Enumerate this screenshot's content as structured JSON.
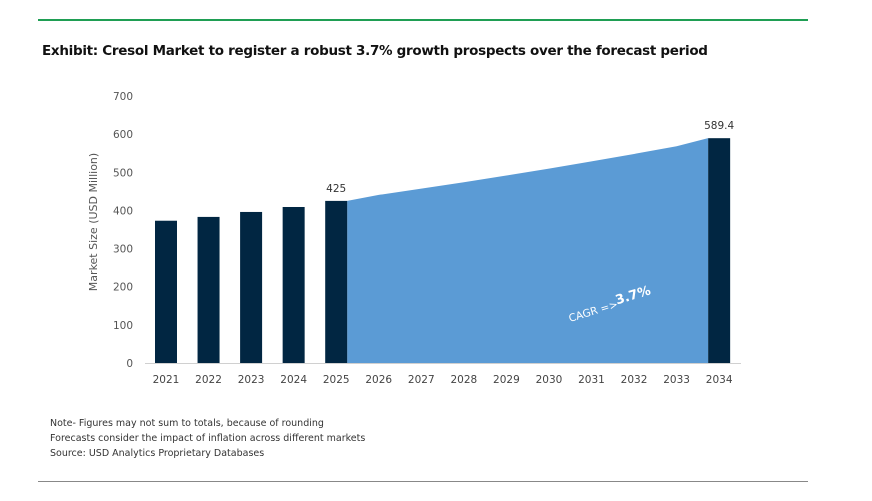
{
  "title": "Exhibit: Cresol Market to register a robust 3.7% growth prospects over the forecast period",
  "notes": [
    "Note- Figures may not sum to totals, because of rounding",
    "Forecasts consider the impact of inflation across different markets",
    "Source: USD Analytics Proprietary Databases"
  ],
  "chart_data": {
    "type": "bar",
    "title": "Exhibit: Cresol Market to register a robust 3.7% growth prospects over the forecast period",
    "xlabel": "",
    "ylabel": "Market Size (USD Million)",
    "ylim": [
      0,
      700
    ],
    "yticks": [
      0,
      100,
      200,
      300,
      400,
      500,
      600,
      700
    ],
    "categories": [
      "2021",
      "2022",
      "2023",
      "2024",
      "2025",
      "2026",
      "2027",
      "2028",
      "2029",
      "2030",
      "2031",
      "2032",
      "2033",
      "2034"
    ],
    "bars": {
      "2021": 373,
      "2022": 383,
      "2023": 396,
      "2024": 409,
      "2025": 425,
      "2034": 589.4
    },
    "forecast_area": {
      "x": [
        "2025",
        "2026",
        "2027",
        "2028",
        "2029",
        "2030",
        "2031",
        "2032",
        "2033",
        "2034"
      ],
      "values": [
        425,
        440.7,
        457,
        474,
        491.5,
        509.7,
        528.5,
        548,
        568.3,
        589.4
      ]
    },
    "data_labels": {
      "2025": "425",
      "2034": "589.4"
    },
    "annotation": {
      "prefix": "CAGR =>",
      "value": "3.7%"
    },
    "grid": false,
    "colors": {
      "bar": "#012642",
      "area": "#5b9bd5"
    }
  }
}
